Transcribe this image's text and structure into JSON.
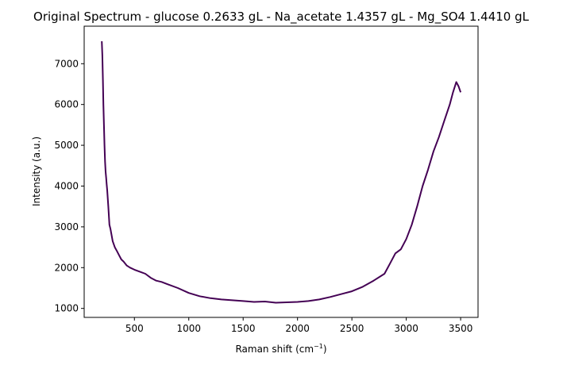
{
  "chart_data": {
    "type": "line",
    "title": "Original Spectrum - glucose 0.2633 gL - Na_acetate 1.4357 gL - Mg_SO4 1.4410 gL",
    "xlabel": "Raman shift (cm",
    "xlabel_sup": "−1",
    "xlabel_suffix": ")",
    "ylabel": "Intensity (a.u.)",
    "xlim": [
      38,
      3660
    ],
    "ylim": [
      780,
      7920
    ],
    "xticks": [
      500,
      1000,
      1500,
      2000,
      2500,
      3000,
      3500
    ],
    "yticks": [
      1000,
      2000,
      3000,
      4000,
      5000,
      6000,
      7000
    ],
    "grid": false,
    "series": [
      {
        "color": "#440154",
        "x": [
          200,
          205,
          210,
          215,
          220,
          225,
          230,
          235,
          240,
          245,
          250,
          260,
          270,
          280,
          290,
          300,
          320,
          340,
          360,
          380,
          400,
          430,
          460,
          500,
          550,
          600,
          650,
          700,
          750,
          800,
          900,
          1000,
          1100,
          1200,
          1300,
          1400,
          1500,
          1600,
          1700,
          1800,
          1900,
          2000,
          2100,
          2200,
          2300,
          2400,
          2500,
          2600,
          2700,
          2800,
          2850,
          2900,
          2950,
          3000,
          3050,
          3100,
          3150,
          3200,
          3250,
          3300,
          3350,
          3400,
          3430,
          3460,
          3480,
          3500
        ],
        "y": [
          7550,
          7200,
          6600,
          6000,
          5500,
          5000,
          4600,
          4350,
          4200,
          4050,
          3900,
          3500,
          3050,
          2950,
          2800,
          2650,
          2500,
          2400,
          2300,
          2200,
          2150,
          2050,
          2000,
          1950,
          1900,
          1850,
          1750,
          1680,
          1650,
          1600,
          1500,
          1380,
          1300,
          1250,
          1220,
          1200,
          1180,
          1160,
          1170,
          1140,
          1150,
          1160,
          1180,
          1220,
          1280,
          1350,
          1420,
          1530,
          1680,
          1850,
          2100,
          2350,
          2450,
          2700,
          3050,
          3500,
          4000,
          4400,
          4850,
          5200,
          5600,
          6000,
          6300,
          6550,
          6450,
          6300
        ]
      }
    ]
  }
}
